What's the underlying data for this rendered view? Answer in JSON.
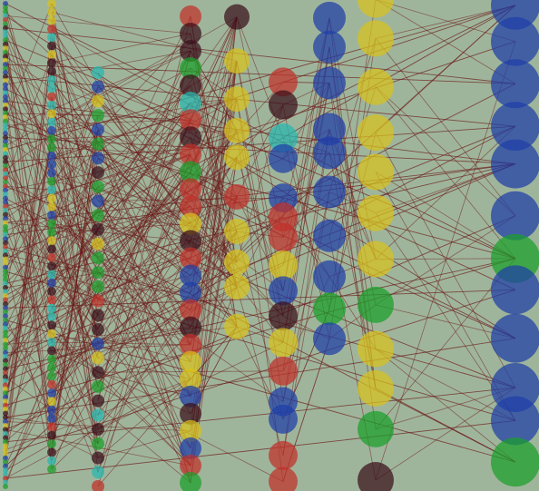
{
  "colors": {
    "background": "#9fb59b",
    "edge": "#6b1a1a",
    "blue": "#1f3fa8",
    "red": "#c0302a",
    "yellow": "#d8c21c",
    "green": "#1aa02a",
    "cyan": "#27b9b0",
    "dark": "#3a0f1a"
  },
  "layers": [
    {
      "name": "layer-1",
      "node_size": "tiny",
      "count": 120
    },
    {
      "name": "layer-2",
      "node_size": "small",
      "count": 56
    },
    {
      "name": "layer-3",
      "node_size": "small",
      "count": 30
    },
    {
      "name": "layer-4",
      "node_size": "medium",
      "count": 28
    },
    {
      "name": "layer-5",
      "node_size": "medium",
      "count": 10
    },
    {
      "name": "layer-6",
      "node_size": "large",
      "count": 16
    },
    {
      "name": "layer-7",
      "node_size": "large",
      "count": 10
    },
    {
      "name": "layer-8",
      "node_size": "large",
      "count": 12
    },
    {
      "name": "layer-9",
      "node_size": "huge",
      "count": 12
    }
  ]
}
